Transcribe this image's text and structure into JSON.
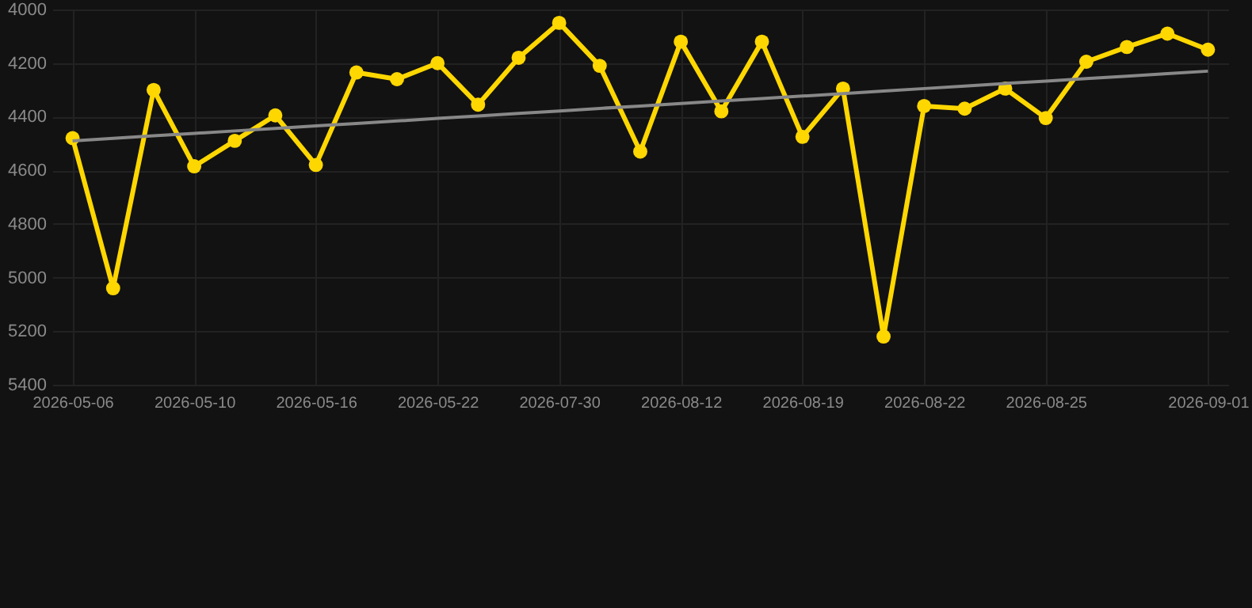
{
  "chart_data": {
    "type": "line",
    "categories": [
      "2026-05-06",
      null,
      null,
      "2026-05-10",
      null,
      null,
      "2026-05-16",
      null,
      null,
      "2026-05-22",
      null,
      null,
      "2026-07-30",
      null,
      null,
      "2026-08-12",
      null,
      null,
      "2026-08-19",
      null,
      null,
      "2026-08-22",
      null,
      null,
      "2026-08-25",
      null,
      null,
      null,
      "2026-09-01"
    ],
    "series": [
      {
        "color": "#ffd700",
        "marker": "circle",
        "values": [
          4480,
          5040,
          4300,
          4585,
          4490,
          4395,
          4580,
          4235,
          4260,
          4200,
          4355,
          4180,
          4050,
          4210,
          4530,
          4120,
          4380,
          4120,
          4475,
          4295,
          5220,
          4360,
          4370,
          4295,
          4405,
          4195,
          4140,
          4090,
          4150
        ]
      },
      {
        "type": "line",
        "color": "#888888",
        "marker": "none",
        "values": [
          4490,
          4481,
          4471,
          4462,
          4453,
          4444,
          4434,
          4425,
          4416,
          4406,
          4397,
          4388,
          4379,
          4369,
          4360,
          4351,
          4341,
          4332,
          4323,
          4314,
          4304,
          4295,
          4286,
          4276,
          4267,
          4258,
          4249,
          4239,
          4230
        ]
      }
    ],
    "ylim": [
      5400,
      4000
    ],
    "yticks": [
      4000,
      4200,
      4400,
      4600,
      4800,
      5000,
      5200,
      5400
    ],
    "grid": true
  }
}
